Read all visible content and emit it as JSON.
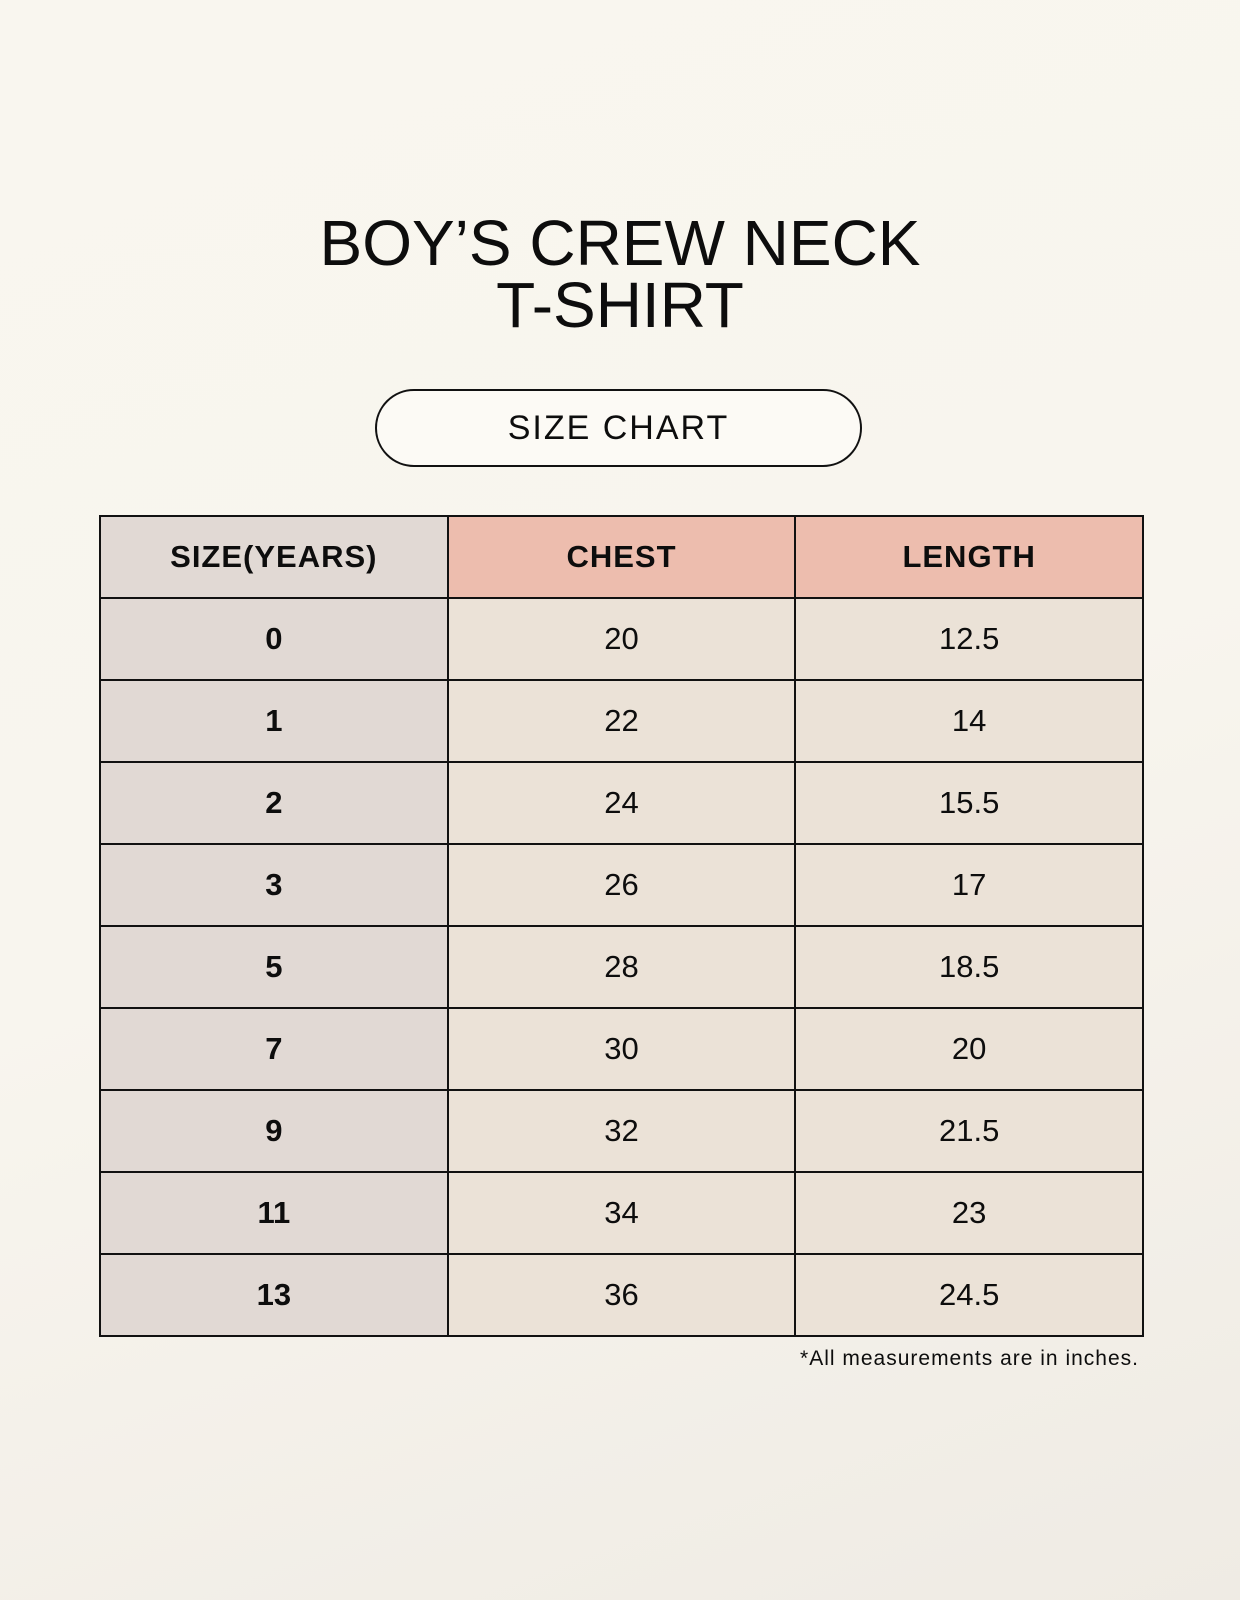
{
  "title": {
    "line1": "BOY’S CREW NECK",
    "line2": "T-SHIRT"
  },
  "subtitle": "SIZE CHART",
  "table": {
    "headers": [
      "SIZE(YEARS)",
      "CHEST",
      "LENGTH"
    ],
    "rows": [
      [
        "0",
        "20",
        "12.5"
      ],
      [
        "1",
        "22",
        "14"
      ],
      [
        "2",
        "24",
        "15.5"
      ],
      [
        "3",
        "26",
        "17"
      ],
      [
        "5",
        "28",
        "18.5"
      ],
      [
        "7",
        "30",
        "20"
      ],
      [
        "9",
        "32",
        "21.5"
      ],
      [
        "11",
        "34",
        "23"
      ],
      [
        "13",
        "36",
        "24.5"
      ]
    ]
  },
  "footnote": "*All measurements are in inches.",
  "colors": {
    "header_accent": "#edbdae",
    "size_column": "#e1d9d4",
    "cell": "#ebe2d7"
  }
}
